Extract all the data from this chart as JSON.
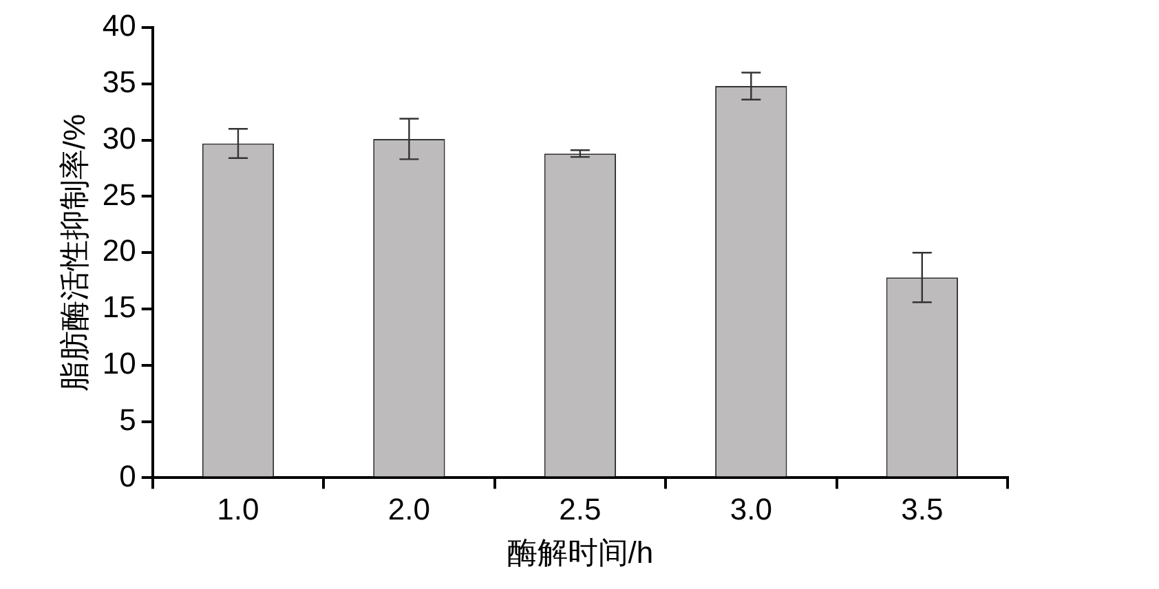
{
  "chart_data": {
    "type": "bar",
    "xlabel": "酶解时间/h",
    "ylabel": "脂肪酶活性抑制率/%",
    "categories": [
      "1.0",
      "2.0",
      "2.5",
      "3.0",
      "3.5"
    ],
    "values": [
      29.7,
      30.1,
      28.8,
      34.8,
      17.8
    ],
    "errors": [
      1.3,
      1.8,
      0.3,
      1.2,
      2.2
    ],
    "color": "#bdbbbc",
    "ylim": [
      0,
      40
    ],
    "yticks": [
      0,
      5,
      10,
      15,
      20,
      25,
      30,
      35,
      40
    ],
    "grid": false,
    "legend": false
  }
}
